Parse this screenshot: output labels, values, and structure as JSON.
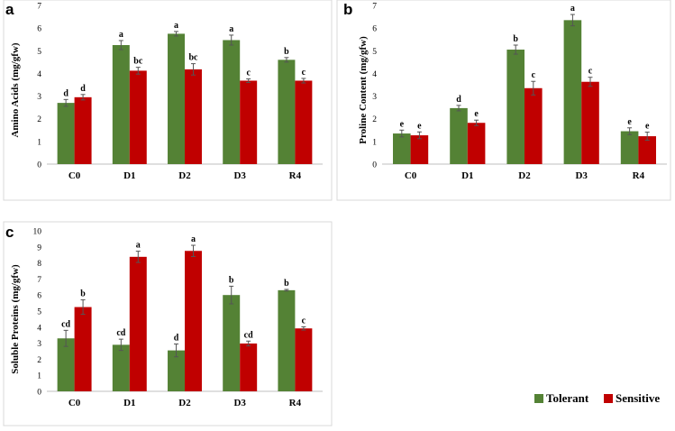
{
  "legend": [
    {
      "label": "Tolerant",
      "color": "#548235"
    },
    {
      "label": "Sensitive",
      "color": "#c00000"
    }
  ],
  "chart_data": [
    {
      "panel": "a",
      "type": "bar",
      "ylabel": "Amino Acids (mg/gfw)",
      "categories": [
        "C0",
        "D1",
        "D2",
        "D3",
        "R4"
      ],
      "ylim": [
        0,
        7
      ],
      "yticks": [
        0,
        1,
        2,
        3,
        4,
        5,
        6,
        7
      ],
      "series": [
        {
          "name": "Tolerant",
          "values": [
            2.7,
            5.25,
            5.75,
            5.47,
            4.6
          ],
          "errors": [
            0.15,
            0.2,
            0.1,
            0.22,
            0.1
          ],
          "labels": [
            "d",
            "a",
            "a",
            "a",
            "b"
          ]
        },
        {
          "name": "Sensitive",
          "values": [
            2.95,
            4.12,
            4.18,
            3.68,
            3.68
          ],
          "errors": [
            0.12,
            0.15,
            0.25,
            0.08,
            0.1
          ],
          "labels": [
            "d",
            "bc",
            "bc",
            "c",
            "c"
          ]
        }
      ]
    },
    {
      "panel": "b",
      "type": "bar",
      "ylabel": "Proline Content (mg/gfw)",
      "categories": [
        "C0",
        "D1",
        "D2",
        "D3",
        "R4"
      ],
      "ylim": [
        0,
        7
      ],
      "yticks": [
        0,
        1,
        2,
        3,
        4,
        5,
        6,
        7
      ],
      "series": [
        {
          "name": "Tolerant",
          "values": [
            1.35,
            2.47,
            5.05,
            6.35,
            1.45
          ],
          "errors": [
            0.15,
            0.12,
            0.2,
            0.25,
            0.15
          ],
          "labels": [
            "e",
            "d",
            "b",
            "a",
            "e"
          ]
        },
        {
          "name": "Sensitive",
          "values": [
            1.27,
            1.82,
            3.35,
            3.63,
            1.23
          ],
          "errors": [
            0.15,
            0.12,
            0.3,
            0.2,
            0.18
          ],
          "labels": [
            "e",
            "e",
            "c",
            "c",
            "e"
          ]
        }
      ]
    },
    {
      "panel": "c",
      "type": "bar",
      "ylabel": "Soluble Proteins (mg/gfw)",
      "categories": [
        "C0",
        "D1",
        "D2",
        "D3",
        "R4"
      ],
      "ylim": [
        0,
        10
      ],
      "yticks": [
        0,
        1,
        2,
        3,
        4,
        5,
        6,
        7,
        8,
        9,
        10
      ],
      "series": [
        {
          "name": "Tolerant",
          "values": [
            3.3,
            2.9,
            2.55,
            6.0,
            6.3
          ],
          "errors": [
            0.5,
            0.35,
            0.4,
            0.55,
            0.05
          ],
          "labels": [
            "cd",
            "cd",
            "d",
            "b",
            "b"
          ]
        },
        {
          "name": "Sensitive",
          "values": [
            5.25,
            8.38,
            8.75,
            2.98,
            3.92
          ],
          "errors": [
            0.45,
            0.35,
            0.35,
            0.15,
            0.1
          ],
          "labels": [
            "b",
            "a",
            "a",
            "cd",
            "c"
          ]
        }
      ]
    }
  ]
}
